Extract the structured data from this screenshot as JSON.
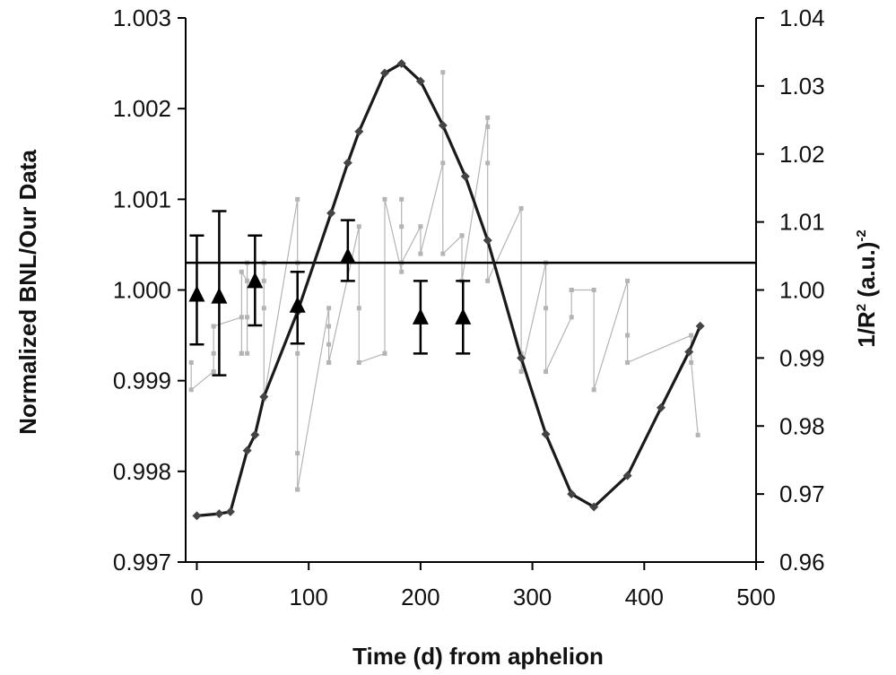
{
  "chart_data": {
    "type": "line",
    "title": "",
    "xlabel": "Time (d) from aphelion",
    "ylabel_left": "Normalized BNL/Our Data",
    "ylabel_right": "1/R² (a.u.)⁻²",
    "ylabel_right_parts": {
      "base": "1/R",
      "sup1": "2",
      "middle": " (a.u.)",
      "sup2": "-2"
    },
    "xlim": [
      -10,
      500
    ],
    "ylim_left": [
      0.997,
      1.003
    ],
    "ylim_right": [
      0.96,
      1.04
    ],
    "x_ticks": [
      "0",
      "100",
      "200",
      "300",
      "400",
      "500"
    ],
    "y_left_ticks": [
      "0.997",
      "0.998",
      "0.999",
      "1.000",
      "1.001",
      "1.002",
      "1.003"
    ],
    "y_right_ticks": [
      "0.96",
      "0.97",
      "0.98",
      "0.99",
      "1.00",
      "1.01",
      "1.02",
      "1.03",
      "1.04"
    ],
    "grid": false,
    "reference_line_left": 1.0003,
    "series": [
      {
        "axis": "right",
        "style": "thick-line-diamond",
        "color": "#1a1a1a",
        "x": [
          0,
          20,
          30,
          45,
          52,
          60,
          90,
          120,
          135,
          145,
          168,
          183,
          200,
          220,
          240,
          260,
          290,
          312,
          335,
          355,
          385,
          415,
          440,
          450
        ],
        "y": [
          0.9668,
          0.9671,
          0.9674,
          0.9764,
          0.9787,
          0.9843,
          0.9968,
          1.0113,
          1.0187,
          1.0233,
          1.0319,
          1.0333,
          1.0307,
          1.0242,
          1.0167,
          1.0073,
          0.99,
          0.9788,
          0.97,
          0.9681,
          0.9727,
          0.9827,
          0.9909,
          0.9947
        ]
      },
      {
        "axis": "left",
        "style": "thin-grey-line-square",
        "color": "#b4b4b4",
        "x": [
          -5,
          -5,
          15,
          15,
          15,
          40,
          40,
          40,
          40,
          45,
          45,
          45,
          45,
          60,
          60,
          60,
          60,
          60,
          90,
          90,
          90,
          90,
          90,
          90,
          118,
          118,
          118,
          118,
          118,
          145,
          145,
          145,
          168,
          168,
          168,
          183,
          183,
          183,
          183,
          200,
          200,
          220,
          220,
          220,
          237,
          237,
          237,
          260,
          260,
          260,
          260,
          290,
          290,
          290,
          312,
          312,
          312,
          335,
          335,
          335,
          355,
          355,
          385,
          385,
          385,
          442,
          442,
          448
        ],
        "y": [
          0.9992,
          0.9989,
          0.9991,
          0.9993,
          0.9996,
          0.9997,
          0.9993,
          0.9993,
          1.0002,
          1.0001,
          0.9997,
          0.9993,
          1.0003,
          1.0003,
          1.0001,
          0.9998,
          0.9988,
          0.9988,
          1.001,
          1.0003,
          0.9993,
          0.9982,
          0.9978,
          0.9978,
          0.9998,
          0.9996,
          0.9994,
          0.9992,
          0.9992,
          1.0007,
          0.9998,
          0.9992,
          0.9993,
          0.9993,
          1.001,
          1.0002,
          1.0007,
          1.001,
          1.0003,
          1.0007,
          1.0004,
          1.0014,
          1.0024,
          1.0004,
          1.0006,
          1.0006,
          1.0001,
          1.0019,
          1.0018,
          1.0014,
          1.0001,
          1.0009,
          0.9993,
          0.9991,
          1.0003,
          0.9998,
          0.9991,
          0.9997,
          1.0,
          1.0,
          1.0,
          0.9989,
          1.0001,
          0.9995,
          0.9992,
          0.9995,
          0.9992,
          0.9984
        ]
      },
      {
        "axis": "left",
        "style": "triangle-errorbar",
        "color": "#000000",
        "x": [
          0,
          20,
          52,
          90,
          135,
          200,
          238
        ],
        "y": [
          0.99995,
          0.99993,
          1.0001,
          0.99983,
          1.00037,
          0.9997,
          0.9997
        ],
        "err_low": [
          0.9994,
          0.99906,
          0.99961,
          0.99941,
          1.0001,
          0.9993,
          0.9993
        ],
        "err_high": [
          1.0006,
          1.00087,
          1.0006,
          1.0002,
          1.00077,
          1.0001,
          1.0001
        ]
      }
    ]
  }
}
